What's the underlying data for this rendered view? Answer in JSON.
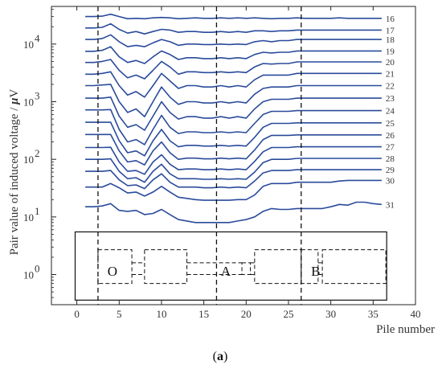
{
  "chart_data": {
    "type": "line",
    "xlabel": "Pile number",
    "ylabel": "Pair value of induced voltage / μV",
    "ylabel_parts": {
      "text": "Pair value of induced voltage / ",
      "unit_symbol": "μ",
      "unit_letter": "V"
    },
    "caption_open": "(",
    "caption_letter": "a",
    "caption_close": ")",
    "xlim": [
      -3,
      40
    ],
    "ylim": [
      0.3,
      45000
    ],
    "yscale": "log",
    "xticks": [
      0,
      5,
      10,
      15,
      20,
      25,
      30,
      35,
      40
    ],
    "yticks": [
      {
        "value": 1,
        "base": "10",
        "exp": "0"
      },
      {
        "value": 10,
        "base": "10",
        "exp": "1"
      },
      {
        "value": 100,
        "base": "10",
        "exp": "2"
      },
      {
        "value": 1000,
        "base": "10",
        "exp": "3"
      },
      {
        "value": 10000,
        "base": "10",
        "exp": "4"
      }
    ],
    "vlines": [
      2.5,
      16.5,
      26.5
    ],
    "line_color": "#2a4b9b",
    "x": [
      1,
      2,
      3,
      4,
      5,
      6,
      7,
      8,
      9,
      10,
      11,
      12,
      13,
      14,
      15,
      16,
      17,
      18,
      19,
      20,
      21,
      22,
      23,
      24,
      25,
      26,
      27,
      28,
      29,
      30,
      31,
      32,
      33,
      34,
      35,
      36
    ],
    "series": [
      {
        "name": "16",
        "values": [
          30000,
          30000,
          30500,
          33000,
          30000,
          27500,
          28000,
          27500,
          28500,
          29000,
          28500,
          27500,
          28000,
          28500,
          28000,
          28000,
          28500,
          28000,
          28500,
          28000,
          28500,
          28000,
          27500,
          28000,
          28000,
          28500,
          28000,
          28000,
          28000,
          28000,
          28500,
          28000,
          28000,
          28000,
          28000,
          28000
        ]
      },
      {
        "name": "17",
        "values": [
          19000,
          19000,
          19500,
          22500,
          18000,
          15500,
          16500,
          15000,
          16500,
          18000,
          17500,
          16000,
          16500,
          16500,
          16000,
          16000,
          16500,
          16000,
          16500,
          16000,
          17000,
          17000,
          16500,
          17000,
          17000,
          17500,
          17500,
          17500,
          17500,
          17500,
          17500,
          17500,
          17500,
          17500,
          17500,
          17500
        ]
      },
      {
        "name": "18",
        "values": [
          12000,
          12000,
          12500,
          14500,
          11000,
          9000,
          9500,
          9000,
          10500,
          12000,
          11000,
          9500,
          10000,
          10000,
          9800,
          9800,
          10000,
          9800,
          10000,
          9800,
          11000,
          11500,
          11000,
          11500,
          11500,
          12000,
          12000,
          12000,
          12000,
          12000,
          12000,
          12000,
          12000,
          12000,
          12000,
          12000
        ]
      },
      {
        "name": "19",
        "values": [
          7500,
          7500,
          7800,
          9000,
          6000,
          4800,
          5200,
          4600,
          6000,
          7600,
          6600,
          5400,
          5800,
          5800,
          5600,
          5600,
          5800,
          5600,
          5800,
          5600,
          6600,
          7200,
          7000,
          7200,
          7200,
          7600,
          7600,
          7600,
          7600,
          7600,
          7600,
          7600,
          7600,
          7600,
          7600,
          7600
        ]
      },
      {
        "name": "20",
        "values": [
          4800,
          4800,
          5000,
          5400,
          3500,
          2600,
          2900,
          2500,
          3500,
          5000,
          4000,
          3000,
          3300,
          3300,
          3200,
          3200,
          3300,
          3200,
          3300,
          3200,
          4000,
          4600,
          4500,
          4600,
          4600,
          4900,
          4900,
          4900,
          4900,
          4900,
          4900,
          4900,
          4900,
          4900,
          4900,
          4900
        ]
      },
      {
        "name": "21",
        "values": [
          3000,
          3000,
          3100,
          3300,
          1900,
          1300,
          1500,
          1200,
          1900,
          3100,
          2300,
          1700,
          1900,
          1900,
          1800,
          1800,
          1900,
          1800,
          1900,
          1800,
          2400,
          2900,
          2900,
          2900,
          2900,
          3100,
          3100,
          3100,
          3100,
          3100,
          3100,
          3100,
          3100,
          3100,
          3100,
          3100
        ]
      },
      {
        "name": "22",
        "values": [
          1900,
          1900,
          1950,
          2000,
          1000,
          650,
          750,
          550,
          1000,
          1800,
          1200,
          900,
          1000,
          1000,
          950,
          950,
          1000,
          950,
          1000,
          950,
          1350,
          1700,
          1800,
          1800,
          1800,
          1900,
          1900,
          1900,
          1900,
          1900,
          1900,
          1900,
          1900,
          1900,
          1900,
          1900
        ]
      },
      {
        "name": "23",
        "values": [
          1150,
          1150,
          1150,
          1200,
          560,
          360,
          400,
          320,
          560,
          1000,
          650,
          500,
          550,
          550,
          520,
          520,
          550,
          520,
          550,
          520,
          750,
          1000,
          1100,
          1100,
          1100,
          1150,
          1150,
          1150,
          1150,
          1150,
          1150,
          1150,
          1150,
          1150,
          1150,
          1150
        ]
      },
      {
        "name": "24",
        "values": [
          720,
          720,
          720,
          730,
          330,
          200,
          220,
          180,
          330,
          580,
          360,
          280,
          300,
          300,
          290,
          290,
          300,
          290,
          300,
          290,
          420,
          600,
          680,
          680,
          680,
          700,
          700,
          700,
          700,
          700,
          700,
          700,
          700,
          700,
          700,
          700
        ]
      },
      {
        "name": "25",
        "values": [
          440,
          440,
          440,
          440,
          210,
          130,
          140,
          115,
          210,
          330,
          210,
          165,
          175,
          175,
          170,
          170,
          175,
          170,
          175,
          170,
          240,
          360,
          420,
          420,
          420,
          430,
          430,
          430,
          430,
          430,
          430,
          430,
          430,
          430,
          430,
          430
        ]
      },
      {
        "name": "26",
        "values": [
          270,
          270,
          270,
          270,
          140,
          90,
          95,
          80,
          140,
          200,
          130,
          100,
          105,
          105,
          102,
          102,
          105,
          102,
          105,
          102,
          145,
          220,
          260,
          260,
          260,
          265,
          265,
          265,
          265,
          265,
          265,
          265,
          265,
          265,
          265,
          265
        ]
      },
      {
        "name": "27",
        "values": [
          160,
          160,
          160,
          162,
          90,
          62,
          64,
          55,
          90,
          120,
          82,
          66,
          68,
          68,
          66,
          66,
          68,
          66,
          68,
          66,
          92,
          135,
          160,
          160,
          160,
          165,
          165,
          165,
          165,
          165,
          165,
          165,
          165,
          165,
          165,
          165
        ]
      },
      {
        "name": "28",
        "values": [
          100,
          100,
          100,
          102,
          62,
          46,
          48,
          40,
          62,
          82,
          56,
          46,
          46,
          46,
          45,
          45,
          46,
          45,
          46,
          45,
          60,
          88,
          100,
          100,
          100,
          104,
          104,
          104,
          104,
          104,
          104,
          104,
          104,
          104,
          104,
          104
        ]
      },
      {
        "name": "29",
        "values": [
          62,
          62,
          62,
          64,
          44,
          35,
          36,
          31,
          44,
          56,
          40,
          33,
          33,
          33,
          32,
          32,
          33,
          32,
          33,
          32,
          42,
          58,
          64,
          64,
          64,
          66,
          66,
          66,
          66,
          66,
          66,
          66,
          66,
          66,
          66,
          66
        ]
      },
      {
        "name": "30",
        "values": [
          33,
          33,
          33,
          38,
          32,
          26,
          27,
          23,
          27,
          34,
          27,
          22,
          21,
          20,
          19.5,
          19.5,
          19.5,
          19.5,
          20,
          20,
          24,
          34,
          38,
          38,
          38,
          40,
          40,
          40,
          40,
          40,
          42,
          43,
          43,
          43,
          43,
          43
        ]
      },
      {
        "name": "31",
        "values": [
          15,
          15,
          15.5,
          17,
          13,
          12.5,
          13,
          11,
          11.5,
          13.5,
          11,
          9,
          8.5,
          8,
          8,
          8,
          8,
          8,
          8.5,
          9,
          10,
          12.5,
          14,
          13.5,
          13.5,
          14,
          14,
          14,
          14,
          15,
          16.5,
          16,
          18,
          18,
          17,
          16.5
        ]
      }
    ],
    "zones": [
      {
        "label": "O",
        "x0": 2.5,
        "x1": 6.5
      },
      {
        "label": "",
        "x0": 8,
        "x1": 13
      },
      {
        "label": "A",
        "x0": 19.5,
        "x1": 20.5
      },
      {
        "label": "",
        "x0": 21,
        "x1": 26.5
      },
      {
        "label": "B",
        "x0": 26.5,
        "x1": 28.5
      },
      {
        "label": "",
        "x0": 29,
        "x1": 36.5
      }
    ]
  }
}
